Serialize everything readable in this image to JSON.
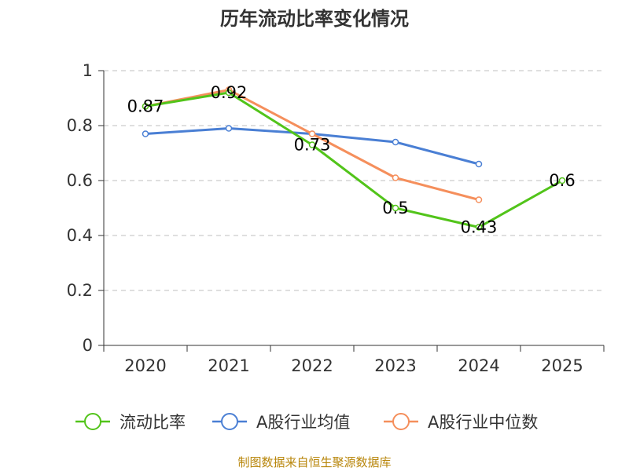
{
  "chart_data": {
    "type": "line",
    "title": "历年流动比率变化情况",
    "categories": [
      "2020",
      "2021",
      "2022",
      "2023",
      "2024",
      "2025"
    ],
    "ylim": [
      0,
      1
    ],
    "yticks": [
      "0",
      "0.2",
      "0.4",
      "0.6",
      "0.8",
      "1"
    ],
    "grid": true,
    "legend_position": "bottom",
    "series": [
      {
        "name": "流动比率",
        "color": "#52c41a",
        "values": [
          0.87,
          0.92,
          0.73,
          0.5,
          0.43,
          0.6
        ],
        "labels": [
          "0.87",
          "0.92",
          "0.73",
          "0.5",
          "0.43",
          "0.6"
        ]
      },
      {
        "name": "A股行业均值",
        "color": "#4a7fd4",
        "values": [
          0.77,
          0.79,
          0.77,
          0.74,
          0.66,
          null
        ]
      },
      {
        "name": "A股行业中位数",
        "color": "#f58f5c",
        "values": [
          0.87,
          0.93,
          0.77,
          0.61,
          0.53,
          null
        ]
      }
    ],
    "source": "制图数据来自恒生聚源数据库"
  }
}
